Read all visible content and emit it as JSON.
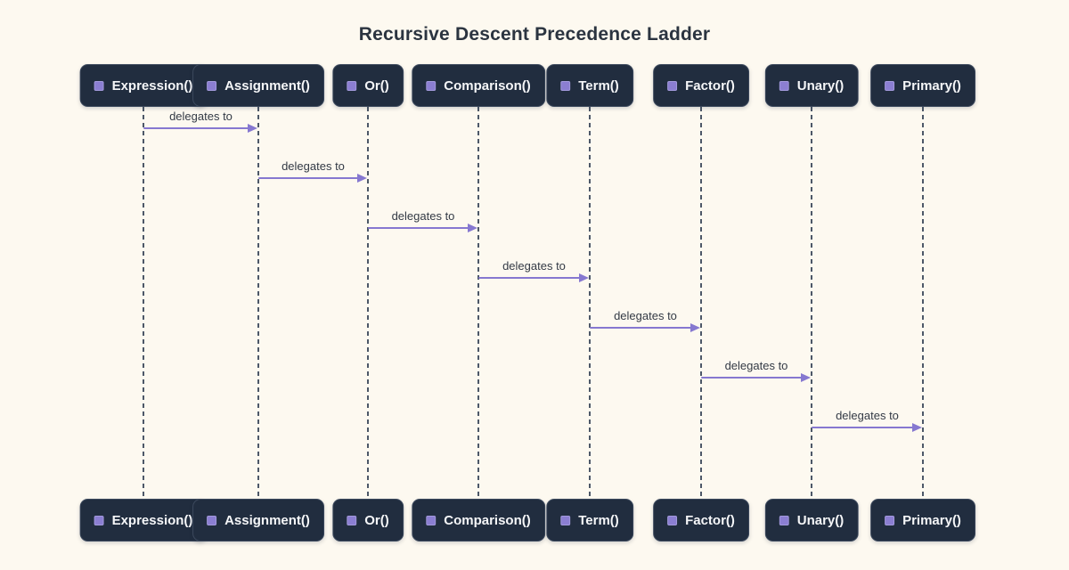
{
  "title": "Recursive Descent Precedence Ladder",
  "diagram": {
    "type": "sequence-diagram",
    "participants": [
      {
        "label": "Expression()",
        "icon": "square-icon"
      },
      {
        "label": "Assignment()",
        "icon": "square-icon"
      },
      {
        "label": "Or()",
        "icon": "square-icon"
      },
      {
        "label": "Comparison()",
        "icon": "square-icon"
      },
      {
        "label": "Term()",
        "icon": "square-icon"
      },
      {
        "label": "Factor()",
        "icon": "square-icon"
      },
      {
        "label": "Unary()",
        "icon": "square-icon"
      },
      {
        "label": "Primary()",
        "icon": "square-icon"
      }
    ],
    "messages": [
      {
        "from": "Expression()",
        "to": "Assignment()",
        "label": "delegates to"
      },
      {
        "from": "Assignment()",
        "to": "Or()",
        "label": "delegates to"
      },
      {
        "from": "Or()",
        "to": "Comparison()",
        "label": "delegates to"
      },
      {
        "from": "Comparison()",
        "to": "Term()",
        "label": "delegates to"
      },
      {
        "from": "Term()",
        "to": "Factor()",
        "label": "delegates to"
      },
      {
        "from": "Factor()",
        "to": "Unary()",
        "label": "delegates to"
      },
      {
        "from": "Unary()",
        "to": "Primary()",
        "label": "delegates to"
      }
    ]
  },
  "colors": {
    "background": "#fdf9f0",
    "participant_box": "#212d3f",
    "participant_text": "#f5f6f8",
    "accent_purple": "#8b7ed2",
    "arrow": "#8678d0",
    "message_text": "#333a45",
    "lifeline": "#4d5868",
    "title_text": "#2b3440"
  }
}
